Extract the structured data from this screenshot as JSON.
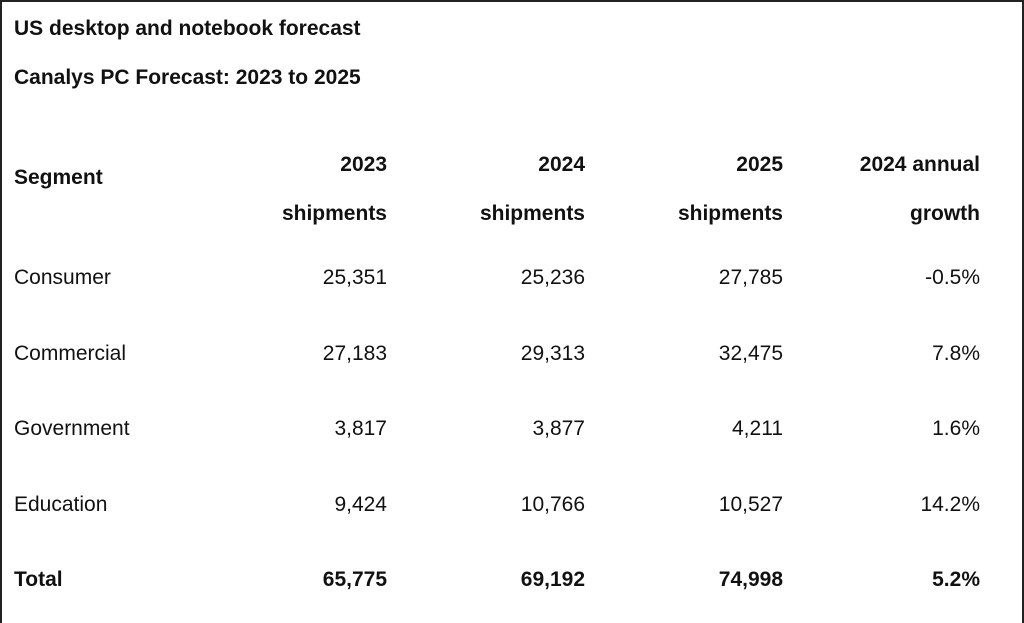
{
  "title": "US desktop and notebook forecast",
  "subtitle": "Canalys PC Forecast: 2023 to 2025",
  "table": {
    "segment_header": "Segment",
    "column_headers": [
      {
        "line1": "2023",
        "line2": "shipments"
      },
      {
        "line1": "2024",
        "line2": "shipments"
      },
      {
        "line1": "2025",
        "line2": "shipments"
      },
      {
        "line1": "2024 annual",
        "line2": "growth"
      }
    ],
    "rows": [
      {
        "segment": "Consumer",
        "y2023": "25,351",
        "y2024": "25,236",
        "y2025": "27,785",
        "growth": "-0.5%"
      },
      {
        "segment": "Commercial",
        "y2023": "27,183",
        "y2024": "29,313",
        "y2025": "32,475",
        "growth": "7.8%"
      },
      {
        "segment": "Government",
        "y2023": "3,817",
        "y2024": "3,877",
        "y2025": "4,211",
        "growth": "1.6%"
      },
      {
        "segment": "Education",
        "y2023": "9,424",
        "y2024": "10,766",
        "y2025": "10,527",
        "growth": "14.2%"
      }
    ],
    "total": {
      "segment": "Total",
      "y2023": "65,775",
      "y2024": "69,192",
      "y2025": "74,998",
      "growth": "5.2%"
    }
  }
}
